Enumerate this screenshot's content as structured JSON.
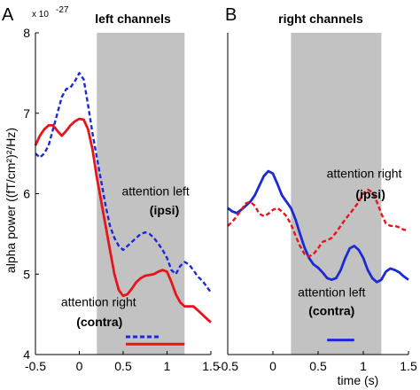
{
  "colors": {
    "red": "#e8141b",
    "blue": "#1a2ad6",
    "shade": "#c2c2c2"
  },
  "figure": {
    "ylabel": "alpha power ((fT/cm²)²/Hz)",
    "xlabel": "time (s)",
    "y_exponent": "x 10",
    "y_exponent_power": "-27"
  },
  "chart_data": [
    {
      "type": "line",
      "panel": "A",
      "title": "left channels",
      "xlim": [
        -0.5,
        1.5
      ],
      "ylim": [
        4,
        8
      ],
      "xticks": [
        "-0.5",
        "0",
        "0.5",
        "1",
        "1.5"
      ],
      "yticks": [
        "4",
        "5",
        "6",
        "7",
        "8"
      ],
      "shaded_interval": [
        0.2,
        1.2
      ],
      "series": [
        {
          "name": "attention left (ipsi)",
          "style": "dashed",
          "color": "blue",
          "x": [
            -0.5,
            -0.45,
            -0.4,
            -0.35,
            -0.3,
            -0.25,
            -0.2,
            -0.15,
            -0.1,
            -0.05,
            0.0,
            0.05,
            0.1,
            0.15,
            0.2,
            0.25,
            0.3,
            0.35,
            0.4,
            0.45,
            0.5,
            0.55,
            0.6,
            0.65,
            0.7,
            0.75,
            0.8,
            0.85,
            0.9,
            0.95,
            1.0,
            1.05,
            1.1,
            1.15,
            1.2,
            1.25,
            1.3,
            1.35,
            1.4,
            1.45,
            1.5
          ],
          "y": [
            6.5,
            6.45,
            6.5,
            6.6,
            6.8,
            7.0,
            7.2,
            7.3,
            7.32,
            7.4,
            7.5,
            7.42,
            7.1,
            6.75,
            6.45,
            6.15,
            5.85,
            5.6,
            5.45,
            5.35,
            5.3,
            5.35,
            5.4,
            5.45,
            5.5,
            5.52,
            5.5,
            5.45,
            5.38,
            5.3,
            5.2,
            5.05,
            5.0,
            5.1,
            5.15,
            5.12,
            5.05,
            4.97,
            4.92,
            4.85,
            4.77
          ]
        },
        {
          "name": "attention right (contra)",
          "style": "solid",
          "color": "red",
          "x": [
            -0.5,
            -0.45,
            -0.4,
            -0.35,
            -0.3,
            -0.25,
            -0.2,
            -0.15,
            -0.1,
            -0.05,
            0.0,
            0.05,
            0.1,
            0.15,
            0.2,
            0.25,
            0.3,
            0.35,
            0.4,
            0.45,
            0.5,
            0.55,
            0.6,
            0.65,
            0.7,
            0.75,
            0.8,
            0.85,
            0.9,
            0.95,
            1.0,
            1.05,
            1.1,
            1.15,
            1.2,
            1.25,
            1.3,
            1.35,
            1.4,
            1.45,
            1.5
          ],
          "y": [
            6.6,
            6.72,
            6.8,
            6.85,
            6.85,
            6.78,
            6.72,
            6.78,
            6.85,
            6.9,
            6.93,
            6.92,
            6.8,
            6.55,
            6.2,
            5.9,
            5.6,
            5.3,
            5.0,
            4.8,
            4.73,
            4.75,
            4.82,
            4.9,
            4.95,
            4.98,
            4.99,
            5.0,
            5.03,
            5.05,
            5.03,
            4.9,
            4.75,
            4.65,
            4.6,
            4.6,
            4.6,
            4.55,
            4.5,
            4.45,
            4.4
          ]
        }
      ],
      "legend_marks": [
        {
          "style": "dashed",
          "color": "blue",
          "x": [
            0.53,
            0.93
          ],
          "y": 4.22
        },
        {
          "style": "solid",
          "color": "red",
          "x": [
            0.53,
            1.2
          ],
          "y": 4.13
        }
      ],
      "annotations": [
        {
          "text": "attention left",
          "bold": false,
          "x": 0.87,
          "y": 5.98
        },
        {
          "text": "(ipsi)",
          "bold": true,
          "x": 0.97,
          "y": 5.74
        },
        {
          "text": "attention right",
          "bold": false,
          "x": 0.22,
          "y": 4.6
        },
        {
          "text": "(contra)",
          "bold": true,
          "x": 0.23,
          "y": 4.35
        }
      ]
    },
    {
      "type": "line",
      "panel": "B",
      "title": "right channels",
      "xlim": [
        -0.5,
        1.5
      ],
      "ylim": [
        4,
        8
      ],
      "xticks": [
        "-0.5",
        "0",
        "0.5",
        "1",
        "1.5"
      ],
      "shaded_interval": [
        0.2,
        1.2
      ],
      "series": [
        {
          "name": "attention left (contra)",
          "style": "solid",
          "color": "blue",
          "x": [
            -0.5,
            -0.45,
            -0.4,
            -0.35,
            -0.3,
            -0.25,
            -0.2,
            -0.15,
            -0.1,
            -0.05,
            0.0,
            0.05,
            0.1,
            0.15,
            0.2,
            0.25,
            0.3,
            0.35,
            0.4,
            0.45,
            0.5,
            0.55,
            0.6,
            0.65,
            0.7,
            0.75,
            0.8,
            0.85,
            0.9,
            0.95,
            1.0,
            1.05,
            1.1,
            1.15,
            1.2,
            1.25,
            1.3,
            1.35,
            1.4,
            1.45,
            1.5
          ],
          "y": [
            5.82,
            5.78,
            5.76,
            5.8,
            5.85,
            5.9,
            5.98,
            6.1,
            6.22,
            6.28,
            6.25,
            6.12,
            5.98,
            5.9,
            5.82,
            5.68,
            5.5,
            5.33,
            5.2,
            5.12,
            5.08,
            5.02,
            4.95,
            4.93,
            4.95,
            5.05,
            5.2,
            5.32,
            5.35,
            5.3,
            5.2,
            5.05,
            4.95,
            4.9,
            4.93,
            5.03,
            5.07,
            5.05,
            5.02,
            4.97,
            4.93
          ]
        },
        {
          "name": "attention right (ipsi)",
          "style": "dashed",
          "color": "red",
          "x": [
            -0.5,
            -0.45,
            -0.4,
            -0.35,
            -0.3,
            -0.25,
            -0.2,
            -0.15,
            -0.1,
            -0.05,
            0.0,
            0.05,
            0.1,
            0.15,
            0.2,
            0.25,
            0.3,
            0.35,
            0.4,
            0.45,
            0.5,
            0.55,
            0.6,
            0.65,
            0.7,
            0.75,
            0.8,
            0.85,
            0.9,
            0.95,
            1.0,
            1.05,
            1.1,
            1.15,
            1.2,
            1.25,
            1.3,
            1.35,
            1.4,
            1.45,
            1.5
          ],
          "y": [
            5.6,
            5.65,
            5.72,
            5.8,
            5.88,
            5.9,
            5.85,
            5.75,
            5.72,
            5.75,
            5.8,
            5.82,
            5.78,
            5.72,
            5.62,
            5.48,
            5.35,
            5.25,
            5.22,
            5.25,
            5.32,
            5.4,
            5.42,
            5.45,
            5.52,
            5.6,
            5.68,
            5.75,
            5.82,
            5.9,
            6.0,
            6.05,
            6.02,
            5.9,
            5.75,
            5.63,
            5.6,
            5.6,
            5.58,
            5.55,
            5.55
          ]
        }
      ],
      "legend_marks": [
        {
          "style": "solid",
          "color": "blue",
          "x": [
            0.6,
            0.9
          ],
          "y": 4.18
        }
      ],
      "annotations": [
        {
          "text": "attention right",
          "bold": false,
          "x": 1.01,
          "y": 6.2
        },
        {
          "text": "(ipsi)",
          "bold": true,
          "x": 1.08,
          "y": 5.94
        },
        {
          "text": "attention left",
          "bold": false,
          "x": 0.65,
          "y": 4.72
        },
        {
          "text": "(contra)",
          "bold": true,
          "x": 0.65,
          "y": 4.49
        }
      ]
    }
  ]
}
